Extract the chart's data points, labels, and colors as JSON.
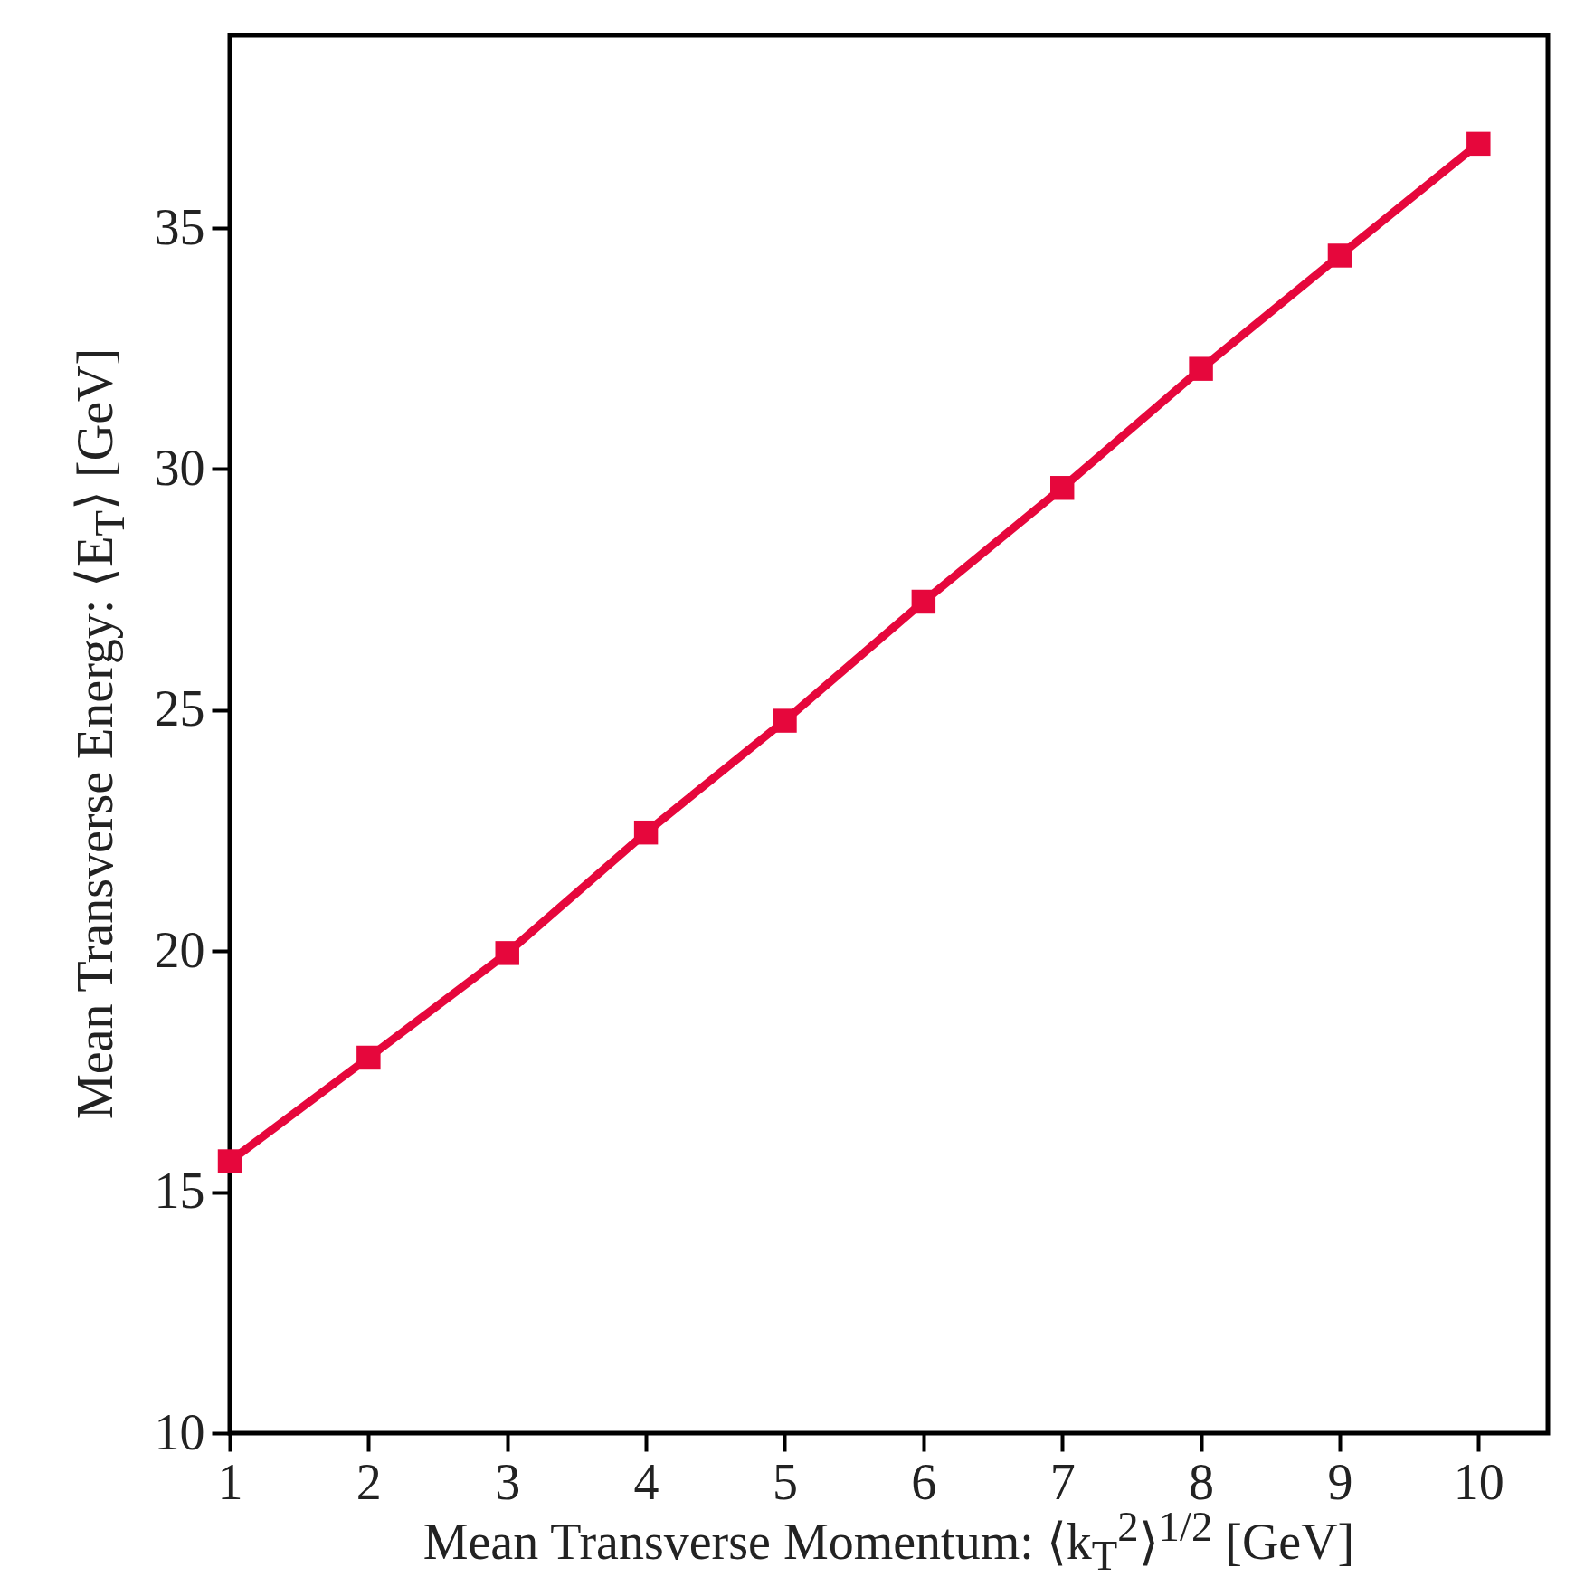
{
  "chart_data": {
    "type": "line",
    "xlabel": "Mean Transverse Momentum: ⟨k$_{T}$$^{2}$⟩$^{1/2}$ [GeV]",
    "ylabel": "Mean Transverse Energy: ⟨E$_{T}$⟩ [GeV]",
    "x": [
      1,
      2,
      3,
      4,
      5,
      6,
      7,
      8,
      9,
      10
    ],
    "series": [
      {
        "color": "#e6073c",
        "values": [
          15.64,
          17.79,
          19.96,
          22.46,
          24.78,
          27.25,
          29.61,
          32.08,
          34.43,
          36.75
        ]
      }
    ],
    "xlim": [
      1,
      10.5
    ],
    "xticks": [
      1,
      2,
      3,
      4,
      5,
      6,
      7,
      8,
      9,
      10
    ],
    "ylim": [
      10,
      39
    ],
    "yticks": [
      10,
      15,
      20,
      25,
      30,
      35
    ],
    "grid": false,
    "marker": "square",
    "line_style": "solid"
  }
}
